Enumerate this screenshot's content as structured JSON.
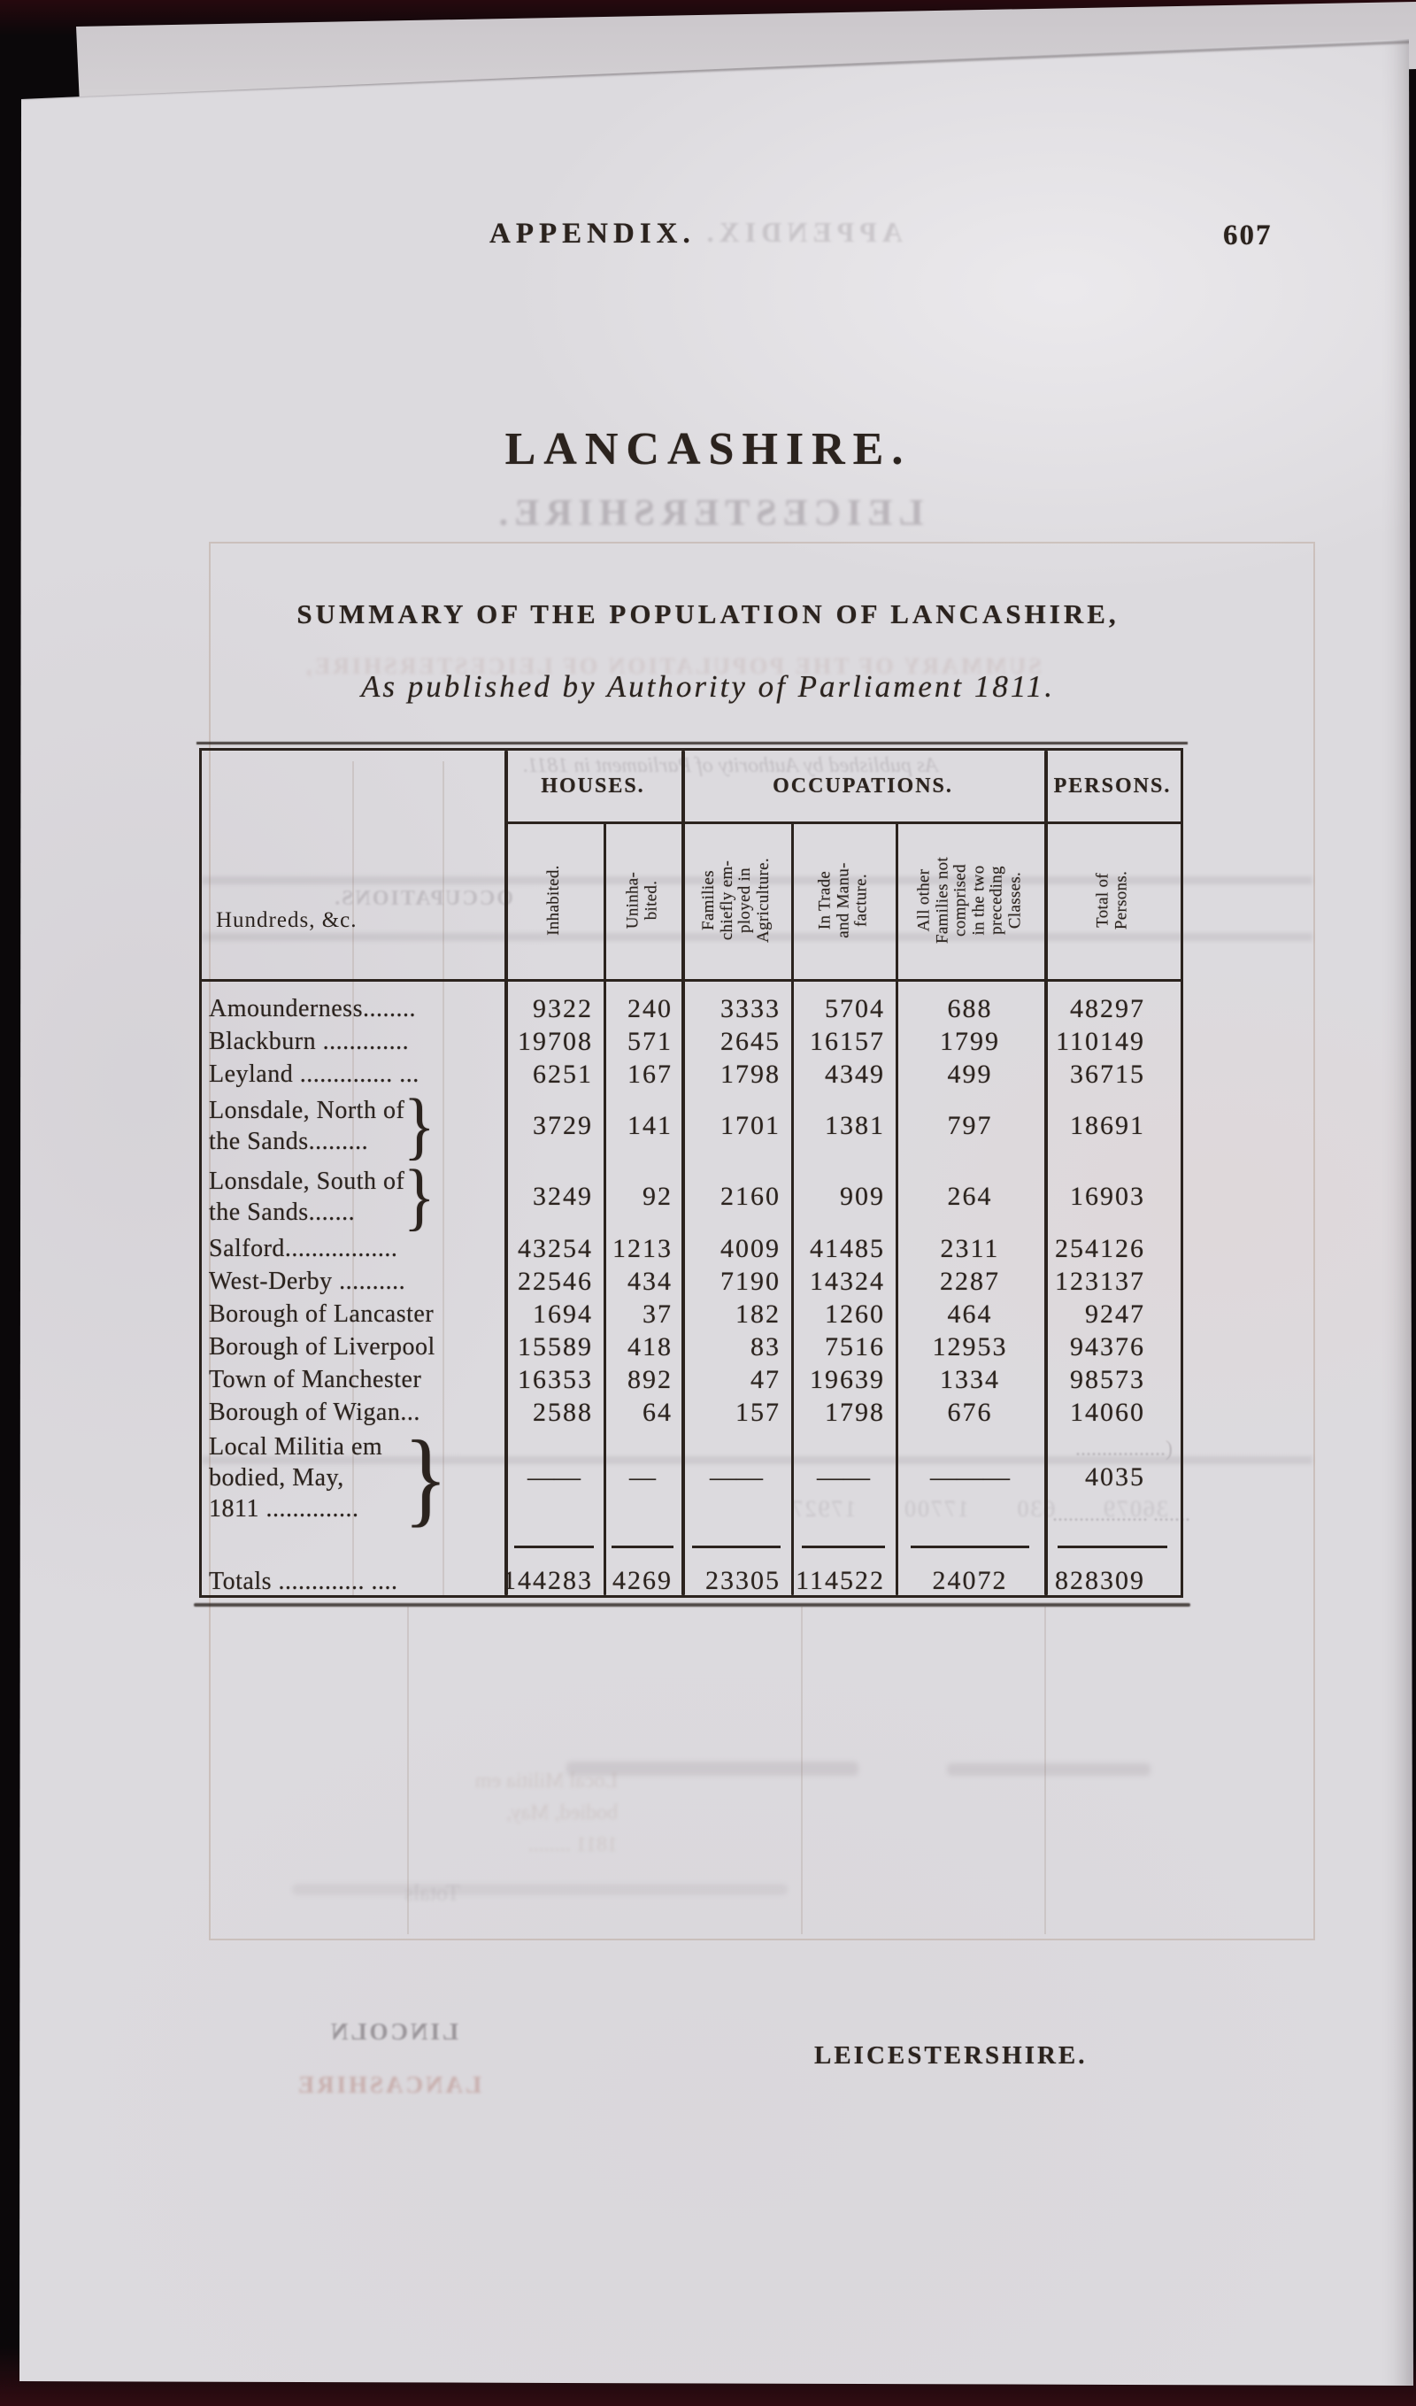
{
  "header": {
    "running_title": "APPENDIX.",
    "page_number": "607"
  },
  "title": "LANCASHIRE.",
  "subtitle": "SUMMARY OF THE POPULATION OF LANCASHIRE,",
  "byline": "As published by Authority of Parliament 1811.",
  "catchword": "LEICESTERSHIRE.",
  "table": {
    "corner_label": "Hundreds, &c.",
    "groups": [
      {
        "label": "HOUSES.",
        "span": 2
      },
      {
        "label": "OCCUPATIONS.",
        "span": 3
      },
      {
        "label": "PERSONS.",
        "span": 1
      }
    ],
    "columns": [
      "Inhabited.",
      "Uninha-\nbited.",
      "Families\nchiefly em-\nployed in\nAgriculture.",
      "In Trade\nand Manu-\nfacture.",
      "All other\nFamilies not\ncomprised\nin the two\npreceding\nClasses.",
      "Total of\nPersons."
    ],
    "rows": [
      {
        "label": "Amounderness........",
        "values": [
          "9322",
          "240",
          "3333",
          "5704",
          "688",
          "48297"
        ]
      },
      {
        "label": "Blackburn .............",
        "values": [
          "19708",
          "571",
          "2645",
          "16157",
          "1799",
          "110149"
        ]
      },
      {
        "label": "Leyland .............. ...",
        "values": [
          "6251",
          "167",
          "1798",
          "4349",
          "499",
          "36715"
        ]
      },
      {
        "label": "Lonsdale, North of\n  the Sands.........",
        "brace": true,
        "values": [
          "3729",
          "141",
          "1701",
          "1381",
          "797",
          "18691"
        ]
      },
      {
        "label": "Lonsdale, South of\n  the Sands.......",
        "brace": true,
        "values": [
          "3249",
          "92",
          "2160",
          "909",
          "264",
          "16903"
        ]
      },
      {
        "label": "Salford.................",
        "values": [
          "43254",
          "1213",
          "4009",
          "41485",
          "2311",
          "254126"
        ]
      },
      {
        "label": "West-Derby ..........",
        "values": [
          "22546",
          "434",
          "7190",
          "14324",
          "2287",
          "123137"
        ]
      },
      {
        "label": "Borough of Lancaster",
        "values": [
          "1694",
          "37",
          "182",
          "1260",
          "464",
          "9247"
        ]
      },
      {
        "label": "Borough of Liverpool",
        "values": [
          "15589",
          "418",
          "83",
          "7516",
          "12953",
          "94376"
        ]
      },
      {
        "label": "Town of Manchester",
        "values": [
          "16353",
          "892",
          "47",
          "19639",
          "1334",
          "98573"
        ]
      },
      {
        "label": "Borough of Wigan...",
        "values": [
          "2588",
          "64",
          "157",
          "1798",
          "676",
          "14060"
        ]
      },
      {
        "label": "Local Militia em\n bodied,    May,\n 1811 ..............",
        "brace": true,
        "tall": true,
        "values": [
          "——",
          "—",
          "——",
          "——",
          "———",
          "4035"
        ]
      }
    ],
    "totals": {
      "label": "Totals ............. ....",
      "values": [
        "144283",
        "4269",
        "23305",
        "114522",
        "24072",
        "828309"
      ]
    }
  },
  "bleedthrough": {
    "appendix_ghost": "APPENDIX.",
    "leicestershire_ghost": "LEICESTERSHIRE.",
    "summary_ghost": "SUMMARY OF THE POPULATION OF LEICESTERSHIRE,",
    "parliament_ghost": "As published by Authority of Parliament in 1811.",
    "occupations_ghost": "OCCUPATIONS.",
    "numbers_ghost": "36079  630  17700  17927",
    "dots_ghost_1": "(.................",
    "dots_ghost_2": ".......  ..................",
    "militia_ghost": "Local Militia em\nbodied,   May,\n1811 ........",
    "totals_ghost": "Totals",
    "lincoln_ghost": "LINCOLN",
    "lancashire_ghost": "LANCASHIRE"
  },
  "colors": {
    "ink": "#2b231e",
    "paper": "#dcdade",
    "background": "#0b080a"
  }
}
